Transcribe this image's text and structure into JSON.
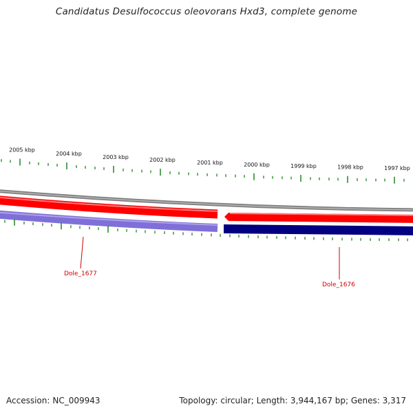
{
  "title": "Candidatus Desulfococcus oleovorans Hxd3, complete genome",
  "footer": {
    "accession_label": "Accession:",
    "accession": "NC_009943",
    "topology": "Topology: circular; Length: 3,944,167 bp; Genes: 3,317"
  },
  "scale_labels": [
    "2005 kbp",
    "2004 kbp",
    "2003 kbp",
    "2002 kbp",
    "2001 kbp",
    "2000 kbp",
    "1999 kbp",
    "1998 kbp",
    "1997 kbp"
  ],
  "genes": [
    {
      "name": "Dole_1677",
      "strand": "reverse",
      "label_color": "#cc0000"
    },
    {
      "name": "Dole_1676",
      "strand": "forward",
      "label_color": "#cc0000"
    }
  ],
  "colors": {
    "backbone": "#7f7f7f",
    "forward_strand": "#ff0000",
    "reverse_strand_light": "#7f6fd8",
    "reverse_strand_dark": "#000080",
    "ticks": "#2e8b2e",
    "gene_label": "#cc0000"
  }
}
